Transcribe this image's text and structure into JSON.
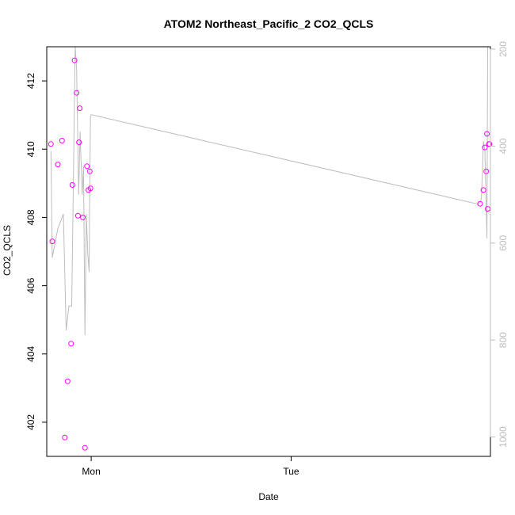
{
  "chart_data": {
    "type": "scatter",
    "title": "ATOM2 Northeast_Pacific_2 CO2_QCLS",
    "xlabel": "Date",
    "ylabel": "CO2_QCLS",
    "xlim": [
      "Sun 18:40",
      "Tue 23:55"
    ],
    "x_ticks": [
      {
        "value": "Mon 00:00",
        "label": "Mon"
      },
      {
        "value": "Tue 00:00",
        "label": "Tue"
      }
    ],
    "ylim": [
      401.0,
      413.0
    ],
    "y_ticks": [
      402,
      404,
      406,
      408,
      410,
      412
    ],
    "y2_label": "",
    "y2_lim": [
      1040,
      195
    ],
    "y2_reversed": true,
    "y2_ticks": [
      200,
      400,
      600,
      800,
      1000
    ],
    "grid": false,
    "colors": {
      "points": "#ff00ff",
      "line": "#bdbdbd",
      "secondary_axis": "#bdbdbd"
    },
    "series": [
      {
        "kind": "points",
        "x": [
          "Sun 19:10",
          "Sun 19:20",
          "Sun 20:00",
          "Sun 20:30",
          "Sun 20:50",
          "Sun 21:10",
          "Sun 21:35",
          "Sun 21:45",
          "Sun 22:00",
          "Sun 22:15",
          "Sun 22:25",
          "Sun 22:32",
          "Sun 22:38",
          "Sun 23:00",
          "Sun 23:15",
          "Sun 23:30",
          "Sun 23:40",
          "Sun 23:50",
          "Sun 23:55",
          "Tue 22:40",
          "Tue 23:05",
          "Tue 23:15",
          "Tue 23:25",
          "Tue 23:30",
          "Tue 23:35",
          "Tue 23:45",
          "Tue 23:48"
        ],
        "y": [
          410.15,
          407.3,
          409.55,
          410.25,
          401.55,
          403.2,
          404.3,
          408.95,
          412.6,
          411.65,
          408.05,
          410.2,
          411.2,
          408.0,
          401.25,
          409.5,
          408.8,
          409.35,
          408.85,
          408.4,
          408.8,
          410.05,
          409.35,
          410.45,
          408.25,
          410.15,
          410.15
        ]
      },
      {
        "kind": "line",
        "axis": "secondary",
        "x": [
          "Sun 19:10",
          "Sun 19:20",
          "Sun 20:00",
          "Sun 20:40",
          "Sun 21:00",
          "Sun 21:20",
          "Sun 21:40",
          "Sun 21:55",
          "Sun 22:05",
          "Sun 22:15",
          "Sun 22:30",
          "Sun 22:40",
          "Sun 22:55",
          "Sun 23:05",
          "Sun 23:15",
          "Sun 23:25",
          "Sun 23:35",
          "Sun 23:45",
          "Sun 23:50",
          "Sun 23:55",
          "Mon 00:00",
          "Tue 22:30",
          "Tue 22:50",
          "Tue 23:05",
          "Tue 23:15",
          "Tue 23:30",
          "Tue 23:35",
          "Tue 23:40",
          "Tue 23:45",
          "Tue 23:55"
        ],
        "y": [
          410,
          630,
          570,
          540,
          780,
          730,
          730,
          400,
          160,
          240,
          500,
          370,
          500,
          440,
          790,
          540,
          620,
          660,
          480,
          340,
          335,
          520,
          510,
          390,
          410,
          590,
          160,
          150,
          150,
          150
        ]
      }
    ]
  }
}
